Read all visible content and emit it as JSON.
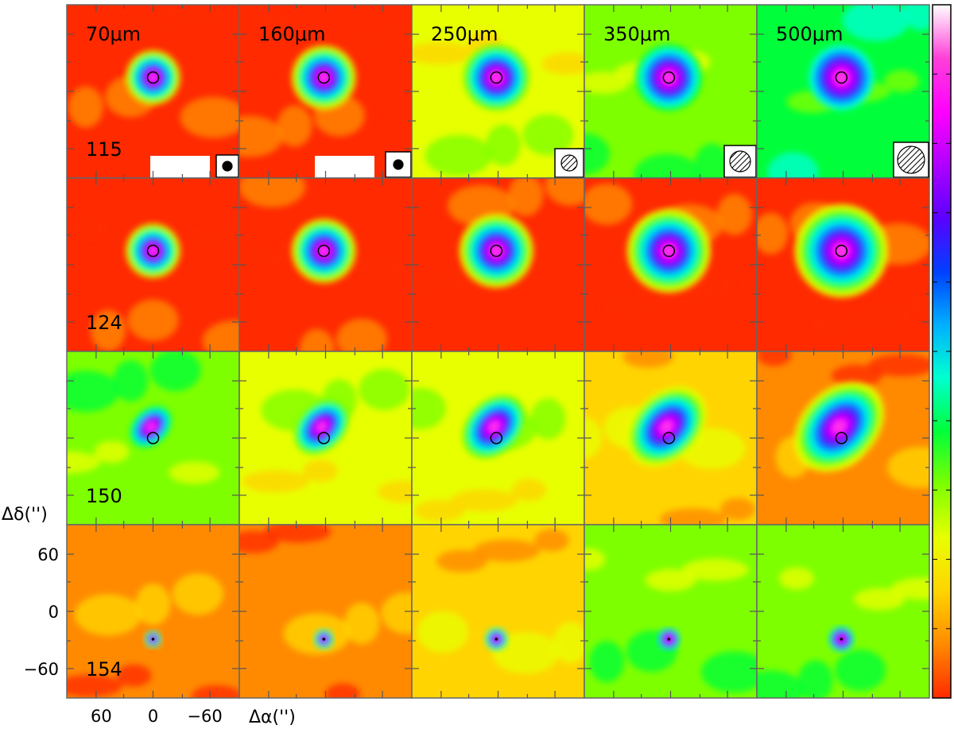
{
  "figure": {
    "columns": [
      {
        "label": "70μm"
      },
      {
        "label": "160μm"
      },
      {
        "label": "250μm"
      },
      {
        "label": "350μm"
      },
      {
        "label": "500μm"
      }
    ],
    "rows": [
      {
        "label": "115"
      },
      {
        "label": "124"
      },
      {
        "label": "150"
      },
      {
        "label": "154"
      }
    ],
    "y_axis": {
      "label": "Δδ('')",
      "ticks": [
        "60",
        "0",
        "−60"
      ]
    },
    "x_axis": {
      "label": "Δα('')",
      "ticks": [
        "60",
        "0",
        "−60"
      ]
    },
    "colorbar": {
      "colors_bottom_to_top": [
        "#ff2a00",
        "#ff8a00",
        "#ffd400",
        "#e8ff00",
        "#7dff00",
        "#00ff3a",
        "#00ffd0",
        "#00b0ff",
        "#0040ff",
        "#5a00ff",
        "#b000ff",
        "#ff00ff",
        "#ff40d8",
        "#ffffff"
      ]
    }
  }
}
